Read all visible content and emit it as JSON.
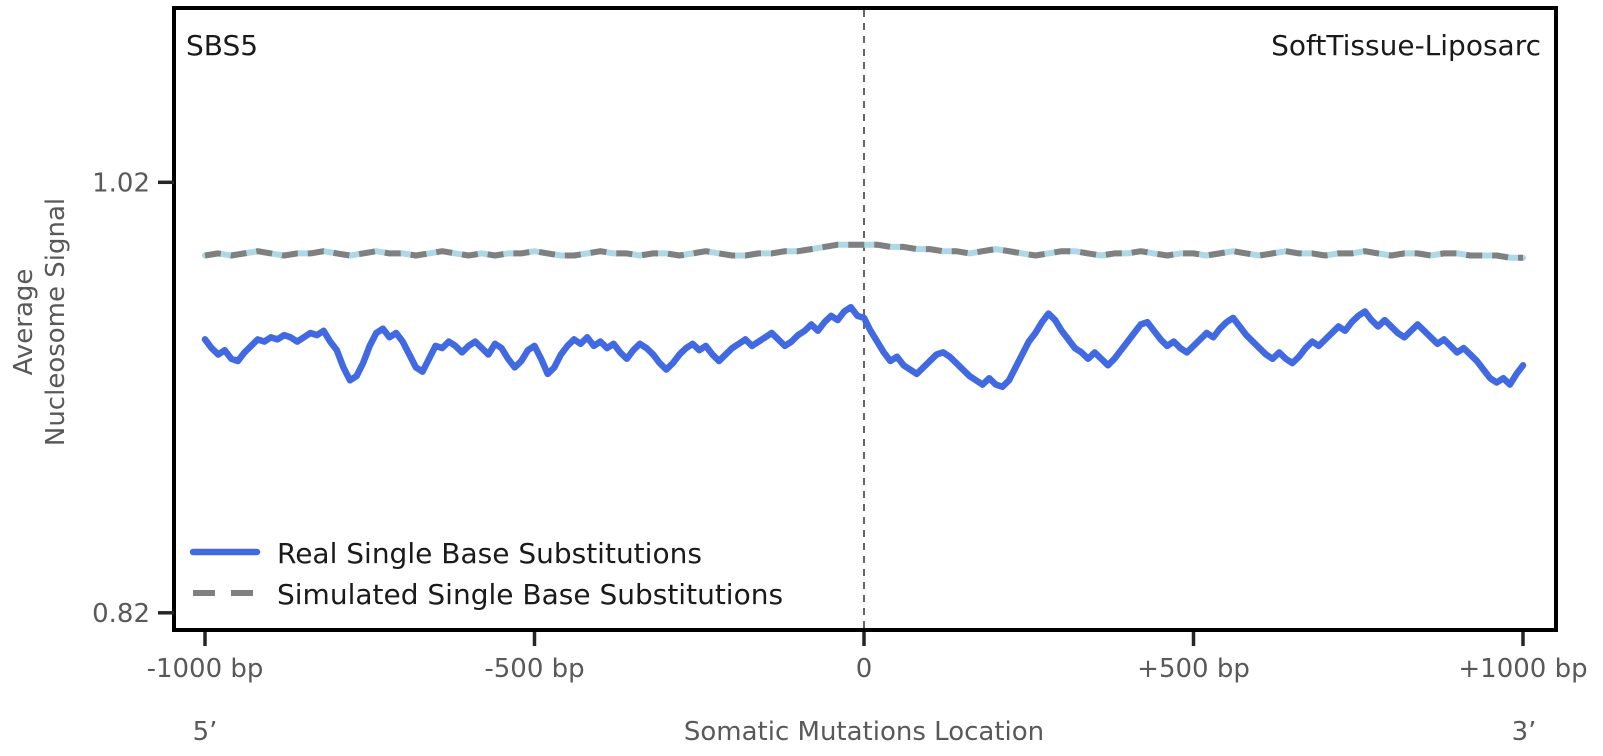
{
  "figure": {
    "signature_label": "SBS5",
    "cohort_label": "SoftTissue-Liposarc"
  },
  "axes": {
    "ylabel_line1": "Average",
    "ylabel_line2": "Nucleosome Signal",
    "xlabel": "Somatic Mutations Location",
    "five_prime_label": "5’",
    "three_prime_label": "3’"
  },
  "legend": {
    "real_label": "Real Single Base Substitutions",
    "simulated_label": "Simulated Single Base Substitutions"
  },
  "colors": {
    "real_line": "#4169E1",
    "simulated_line": "#808080",
    "simulated_underlay": "#ADD8E6",
    "zero_line": "#666666",
    "spine": "#000000",
    "tick_mark": "#262626",
    "tick_label": "#595959"
  },
  "chart_data": {
    "type": "line",
    "title": "SBS5",
    "subtitle": "SoftTissue-Liposarc",
    "xlabel": "Somatic Mutations Location",
    "ylabel": "Average Nucleosome Signal",
    "xlim": [
      -1047,
      1050
    ],
    "ylim": [
      0.812,
      1.101
    ],
    "grid": false,
    "legend_position": "lower-left-inside",
    "zero_reference_line": {
      "x": 0,
      "style": "dashed"
    },
    "xticks": [
      {
        "value": -1000,
        "label": "-1000 bp"
      },
      {
        "value": -500,
        "label": "-500 bp"
      },
      {
        "value": 0,
        "label": "0"
      },
      {
        "value": 500,
        "label": "+500 bp"
      },
      {
        "value": 1000,
        "label": "+1000 bp"
      }
    ],
    "yticks": [
      {
        "value": 1.02,
        "label": "1.02"
      },
      {
        "value": 0.82,
        "label": "0.82"
      }
    ],
    "series": [
      {
        "name": "Real Single Base Substitutions",
        "style": "solid",
        "color": "#4169E1",
        "x_start": -1000,
        "x_step": 10,
        "values": [
          0.947,
          0.943,
          0.94,
          0.942,
          0.938,
          0.937,
          0.941,
          0.944,
          0.947,
          0.946,
          0.948,
          0.947,
          0.949,
          0.948,
          0.946,
          0.948,
          0.95,
          0.949,
          0.951,
          0.946,
          0.942,
          0.934,
          0.928,
          0.93,
          0.936,
          0.944,
          0.95,
          0.952,
          0.948,
          0.95,
          0.946,
          0.94,
          0.934,
          0.932,
          0.938,
          0.944,
          0.943,
          0.946,
          0.944,
          0.941,
          0.944,
          0.946,
          0.943,
          0.94,
          0.945,
          0.943,
          0.938,
          0.934,
          0.937,
          0.942,
          0.944,
          0.938,
          0.931,
          0.934,
          0.94,
          0.944,
          0.947,
          0.945,
          0.948,
          0.944,
          0.946,
          0.943,
          0.945,
          0.941,
          0.938,
          0.942,
          0.945,
          0.943,
          0.94,
          0.936,
          0.933,
          0.936,
          0.94,
          0.943,
          0.945,
          0.942,
          0.944,
          0.94,
          0.937,
          0.94,
          0.943,
          0.945,
          0.947,
          0.944,
          0.946,
          0.948,
          0.95,
          0.947,
          0.944,
          0.946,
          0.949,
          0.951,
          0.954,
          0.951,
          0.955,
          0.958,
          0.956,
          0.96,
          0.962,
          0.958,
          0.957,
          0.951,
          0.946,
          0.941,
          0.937,
          0.939,
          0.935,
          0.933,
          0.931,
          0.934,
          0.937,
          0.94,
          0.941,
          0.939,
          0.936,
          0.933,
          0.93,
          0.928,
          0.926,
          0.929,
          0.926,
          0.925,
          0.928,
          0.934,
          0.94,
          0.946,
          0.95,
          0.955,
          0.959,
          0.956,
          0.951,
          0.947,
          0.943,
          0.941,
          0.938,
          0.941,
          0.938,
          0.935,
          0.938,
          0.942,
          0.946,
          0.95,
          0.954,
          0.955,
          0.951,
          0.947,
          0.944,
          0.946,
          0.943,
          0.941,
          0.944,
          0.947,
          0.95,
          0.948,
          0.952,
          0.955,
          0.957,
          0.953,
          0.949,
          0.946,
          0.943,
          0.94,
          0.938,
          0.941,
          0.938,
          0.936,
          0.939,
          0.943,
          0.946,
          0.944,
          0.947,
          0.95,
          0.953,
          0.951,
          0.955,
          0.958,
          0.96,
          0.956,
          0.953,
          0.956,
          0.953,
          0.95,
          0.948,
          0.951,
          0.954,
          0.951,
          0.948,
          0.945,
          0.947,
          0.944,
          0.941,
          0.943,
          0.94,
          0.937,
          0.933,
          0.929,
          0.927,
          0.929,
          0.926,
          0.931,
          0.935
        ]
      },
      {
        "name": "Simulated Single Base Substitutions",
        "style": "dashed",
        "color": "#808080",
        "underlay_color": "#ADD8E6",
        "x_start": -1000,
        "x_step": 20,
        "values": [
          0.986,
          0.987,
          0.986,
          0.987,
          0.988,
          0.987,
          0.986,
          0.987,
          0.987,
          0.988,
          0.987,
          0.986,
          0.987,
          0.988,
          0.987,
          0.987,
          0.986,
          0.987,
          0.988,
          0.987,
          0.986,
          0.987,
          0.986,
          0.987,
          0.987,
          0.988,
          0.987,
          0.986,
          0.986,
          0.987,
          0.988,
          0.987,
          0.987,
          0.986,
          0.987,
          0.987,
          0.986,
          0.987,
          0.988,
          0.987,
          0.986,
          0.986,
          0.987,
          0.987,
          0.988,
          0.988,
          0.989,
          0.99,
          0.991,
          0.991,
          0.991,
          0.991,
          0.99,
          0.99,
          0.989,
          0.989,
          0.988,
          0.988,
          0.987,
          0.988,
          0.989,
          0.988,
          0.987,
          0.986,
          0.987,
          0.988,
          0.988,
          0.987,
          0.986,
          0.987,
          0.987,
          0.988,
          0.987,
          0.986,
          0.987,
          0.987,
          0.986,
          0.987,
          0.988,
          0.987,
          0.986,
          0.987,
          0.988,
          0.987,
          0.987,
          0.986,
          0.987,
          0.987,
          0.988,
          0.987,
          0.986,
          0.987,
          0.987,
          0.986,
          0.987,
          0.987,
          0.986,
          0.986,
          0.986,
          0.985,
          0.985
        ]
      }
    ]
  }
}
